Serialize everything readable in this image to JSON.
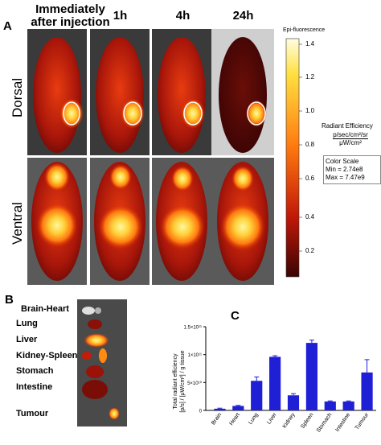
{
  "panels": {
    "a": "A",
    "b": "B",
    "c": "C"
  },
  "columns": [
    "Immediately after injection",
    "1h",
    "4h",
    "24h"
  ],
  "rows": [
    "Dorsal",
    "Ventral"
  ],
  "colorbar": {
    "title": "Epi-fluorescence",
    "ticks": [
      "1.4",
      "1.2",
      "1.0",
      "0.8",
      "0.6",
      "0.4",
      "0.2"
    ],
    "unit_title": "Radiant Efficiency",
    "unit_num": "p/sec/cm²/sr",
    "unit_den": "μW/cm²",
    "scale_title": "Color Scale",
    "scale_min": "Min = 2.74e8",
    "scale_max": "Max = 7.47e9"
  },
  "organs": [
    "Brain-Heart",
    "Lung",
    "Liver",
    "Kidney-Spleen",
    "Stomach",
    "Intestine",
    "Tumour"
  ],
  "chart_data": {
    "type": "bar",
    "categories": [
      "Brain",
      "Heart",
      "Lung",
      "Liver",
      "Kidney",
      "Spleen",
      "Stomach",
      "Intestine",
      "Tumour"
    ],
    "values": [
      0.3,
      0.8,
      5.3,
      9.6,
      2.7,
      12.1,
      1.6,
      1.6,
      6.8
    ],
    "errors": [
      0.1,
      0.1,
      0.7,
      0.2,
      0.3,
      0.5,
      0.1,
      0.1,
      2.3
    ],
    "ylabel_line1": "Total radiant efficiency",
    "ylabel_line2": "[p/s] / [μW/cm²] / g tissue",
    "yticks": [
      "0",
      "5×10¹⁰",
      "1×10¹¹",
      "1.5×10¹¹"
    ],
    "ylim": [
      0,
      15
    ],
    "bar_color": "#1f1fd6"
  }
}
